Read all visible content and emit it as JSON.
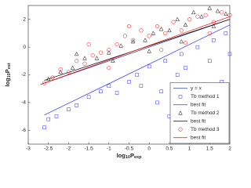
{
  "chart_data": {
    "type": "scatter",
    "xlabel": [
      "log",
      "10",
      "P",
      "exp"
    ],
    "ylabel": [
      "log",
      "10",
      "P",
      "est"
    ],
    "xlim": [
      -3,
      2
    ],
    "xticks": [
      -3,
      -2.5,
      -2,
      -1.5,
      -1,
      -0.5,
      0,
      0.5,
      1,
      1.5,
      2
    ],
    "ylim": [
      -7,
      3
    ],
    "yticks": [
      -6,
      -4,
      -2,
      0,
      2
    ],
    "legend": "lower right",
    "series": [
      {
        "name": "y = x",
        "color": "#1f3a8a",
        "style": "line",
        "x": [
          -2.7,
          2
        ],
        "values": [
          -2.7,
          2
        ]
      },
      {
        "name": "Tb method 1",
        "color": "#3333ff",
        "style": "square",
        "x": [
          -2.6,
          -2.5,
          -2.3,
          -2.0,
          -1.8,
          -1.5,
          -1.2,
          -1.0,
          -0.8,
          -0.5,
          -0.3,
          0,
          0.2,
          0.4,
          0.5,
          0.7,
          0.9,
          1.0,
          1.2,
          1.3,
          1.5,
          1.6,
          1.8,
          1.9,
          2.0,
          0.3,
          0.8,
          1.4,
          1.7,
          -0.2
        ],
        "values": [
          -5.8,
          -5.2,
          -5.0,
          -4.5,
          -4.2,
          -3.6,
          -3.2,
          -2.8,
          -3.3,
          -2.5,
          -2.0,
          -1.4,
          -4.0,
          -1.0,
          -5.0,
          -2.0,
          -1.5,
          -4.6,
          0.0,
          -3.0,
          -1.0,
          0.5,
          -2.5,
          1.0,
          -0.5,
          -3.2,
          -0.5,
          -5.2,
          -3.8,
          -2.8
        ]
      },
      {
        "name": "best fit",
        "color": "#3333ff",
        "style": "line",
        "x": [
          -2.6,
          2
        ],
        "values": [
          -4.9,
          1.6
        ]
      },
      {
        "name": "Tb method 2",
        "color": "#000000",
        "style": "triangle",
        "x": [
          -2.5,
          -2.2,
          -1.9,
          -1.6,
          -1.3,
          -1.0,
          -0.7,
          -0.4,
          -0.1,
          0.1,
          0.3,
          0.5,
          0.7,
          0.9,
          1.1,
          1.3,
          1.5,
          1.7,
          1.9,
          -1.8,
          -0.9,
          0.0,
          0.8,
          1.6
        ],
        "values": [
          -2.3,
          -1.8,
          -1.5,
          -0.8,
          -0.8,
          -0.4,
          0.1,
          0.4,
          0.5,
          1.0,
          1.3,
          1.2,
          2.0,
          1.6,
          2.5,
          2.2,
          2.8,
          2.6,
          2.4,
          -0.5,
          -1.0,
          -0.3,
          0.4,
          1.5
        ]
      },
      {
        "name": "best fit",
        "color": "#000000",
        "style": "line",
        "x": [
          -2.6,
          2
        ],
        "values": [
          -2.4,
          2.0
        ]
      },
      {
        "name": "Tb method 3",
        "color": "#ff0000",
        "style": "circle",
        "x": [
          -2.6,
          -2.4,
          -2.2,
          -2.0,
          -1.8,
          -1.6,
          -1.4,
          -1.2,
          -1.0,
          -0.8,
          -0.6,
          -0.4,
          -0.2,
          0,
          0.2,
          0.4,
          0.6,
          0.8,
          1.0,
          1.2,
          1.4,
          1.6,
          1.8,
          2.0,
          -1.0,
          -0.5,
          0.3,
          0.9,
          1.5,
          -1.5
        ],
        "values": [
          -2.6,
          -2.2,
          -1.6,
          -1.8,
          -1.0,
          -1.2,
          -0.6,
          -0.4,
          -0.2,
          0.2,
          0.8,
          0.5,
          1.2,
          0.8,
          1.5,
          1.0,
          1.8,
          1.2,
          2.0,
          2.2,
          2.3,
          1.8,
          2.5,
          2.3,
          -1.5,
          1.5,
          -0.2,
          0.3,
          1.0,
          0.2
        ]
      },
      {
        "name": "best fit",
        "color": "#ff0000",
        "style": "line",
        "x": [
          -2.6,
          2
        ],
        "values": [
          -2.6,
          2.2
        ]
      }
    ]
  }
}
